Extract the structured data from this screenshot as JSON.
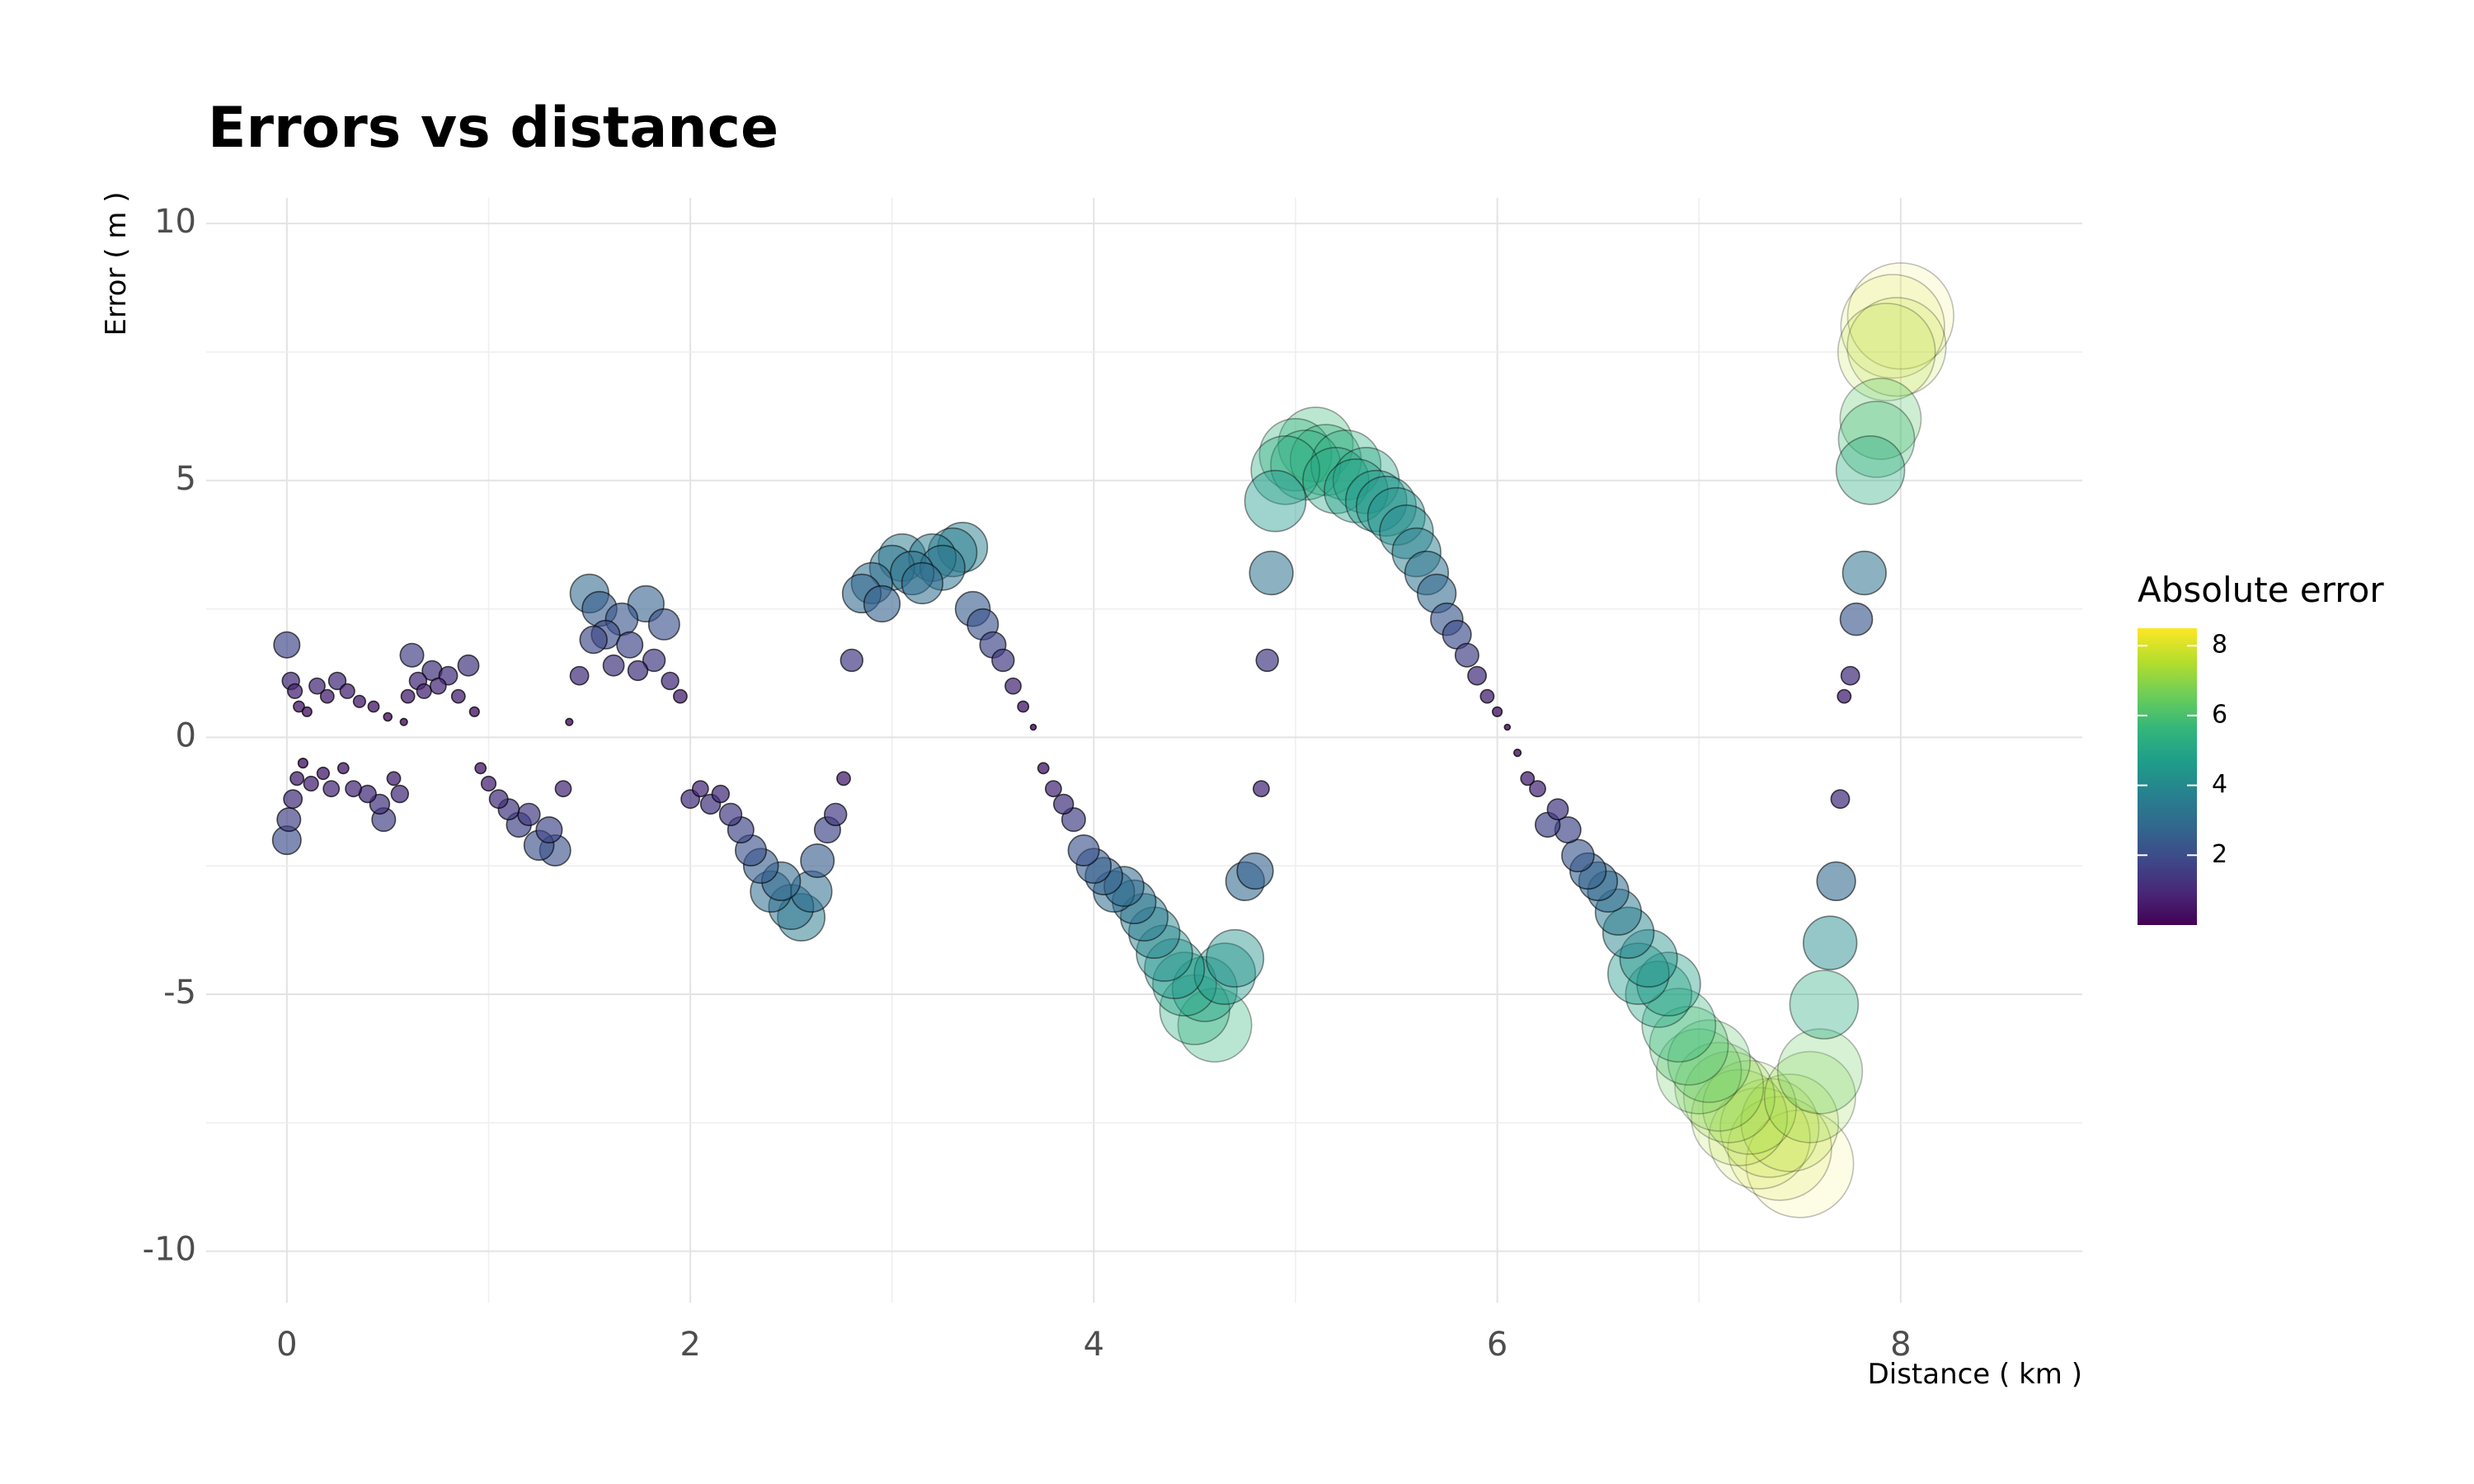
{
  "chart_data": {
    "type": "scatter",
    "title": "Errors vs distance",
    "xlabel": "Distance ( km )",
    "ylabel": "Error ( m )",
    "xlim": [
      -0.4,
      8.9
    ],
    "ylim": [
      -11,
      10.5
    ],
    "x_ticks": [
      0,
      2,
      4,
      6,
      8
    ],
    "y_ticks": [
      10,
      5,
      0,
      -5,
      -10
    ],
    "x_tick_labels": [
      "0",
      "2",
      "4",
      "6",
      "8"
    ],
    "y_tick_labels": [
      "10",
      "5",
      "0",
      "-5",
      "-10"
    ],
    "grid": true,
    "size_encoding": "Absolute error",
    "color_encoding": "Absolute error",
    "legend": {
      "title": "Absolute error",
      "placement": "right",
      "range": [
        0,
        8.5
      ],
      "ticks": [
        8,
        6,
        4,
        2
      ],
      "tick_labels": [
        "8",
        "6",
        "4",
        "2"
      ],
      "colormap": [
        "#440154",
        "#482878",
        "#3e4989",
        "#31688e",
        "#26828e",
        "#1f9e89",
        "#35b779",
        "#6ece58",
        "#b5de2b",
        "#fde725"
      ]
    },
    "points": [
      [
        0.0,
        1.8
      ],
      [
        0.0,
        -2.0
      ],
      [
        0.01,
        -1.6
      ],
      [
        0.02,
        1.1
      ],
      [
        0.03,
        -1.2
      ],
      [
        0.04,
        0.9
      ],
      [
        0.05,
        -0.8
      ],
      [
        0.06,
        0.6
      ],
      [
        0.08,
        -0.5
      ],
      [
        0.1,
        0.5
      ],
      [
        0.12,
        -0.9
      ],
      [
        0.15,
        1.0
      ],
      [
        0.18,
        -0.7
      ],
      [
        0.2,
        0.8
      ],
      [
        0.22,
        -1.0
      ],
      [
        0.25,
        1.1
      ],
      [
        0.28,
        -0.6
      ],
      [
        0.3,
        0.9
      ],
      [
        0.33,
        -1.0
      ],
      [
        0.36,
        0.7
      ],
      [
        0.4,
        -1.1
      ],
      [
        0.43,
        0.6
      ],
      [
        0.46,
        -1.3
      ],
      [
        0.48,
        -1.6
      ],
      [
        0.5,
        0.4
      ],
      [
        0.53,
        -0.8
      ],
      [
        0.56,
        -1.1
      ],
      [
        0.58,
        0.3
      ],
      [
        0.6,
        0.8
      ],
      [
        0.62,
        1.6
      ],
      [
        0.65,
        1.1
      ],
      [
        0.68,
        0.9
      ],
      [
        0.72,
        1.3
      ],
      [
        0.75,
        1.0
      ],
      [
        0.8,
        1.2
      ],
      [
        0.85,
        0.8
      ],
      [
        0.9,
        1.4
      ],
      [
        0.93,
        0.5
      ],
      [
        0.96,
        -0.6
      ],
      [
        1.0,
        -0.9
      ],
      [
        1.05,
        -1.2
      ],
      [
        1.1,
        -1.4
      ],
      [
        1.15,
        -1.7
      ],
      [
        1.2,
        -1.5
      ],
      [
        1.25,
        -2.1
      ],
      [
        1.3,
        -1.8
      ],
      [
        1.33,
        -2.2
      ],
      [
        1.37,
        -1.0
      ],
      [
        1.4,
        0.3
      ],
      [
        1.45,
        1.2
      ],
      [
        1.5,
        2.8
      ],
      [
        1.52,
        1.9
      ],
      [
        1.55,
        2.5
      ],
      [
        1.58,
        2.0
      ],
      [
        1.62,
        1.4
      ],
      [
        1.66,
        2.3
      ],
      [
        1.7,
        1.8
      ],
      [
        1.74,
        1.3
      ],
      [
        1.78,
        2.6
      ],
      [
        1.82,
        1.5
      ],
      [
        1.87,
        2.2
      ],
      [
        1.9,
        1.1
      ],
      [
        1.95,
        0.8
      ],
      [
        2.0,
        -1.2
      ],
      [
        2.05,
        -1.0
      ],
      [
        2.1,
        -1.3
      ],
      [
        2.15,
        -1.1
      ],
      [
        2.2,
        -1.5
      ],
      [
        2.25,
        -1.8
      ],
      [
        2.3,
        -2.2
      ],
      [
        2.35,
        -2.5
      ],
      [
        2.4,
        -3.0
      ],
      [
        2.45,
        -2.8
      ],
      [
        2.5,
        -3.3
      ],
      [
        2.55,
        -3.5
      ],
      [
        2.6,
        -3.0
      ],
      [
        2.63,
        -2.4
      ],
      [
        2.68,
        -1.8
      ],
      [
        2.72,
        -1.5
      ],
      [
        2.76,
        -0.8
      ],
      [
        2.8,
        1.5
      ],
      [
        2.85,
        2.8
      ],
      [
        2.9,
        3.0
      ],
      [
        2.95,
        2.6
      ],
      [
        3.0,
        3.3
      ],
      [
        3.05,
        3.5
      ],
      [
        3.1,
        3.2
      ],
      [
        3.15,
        3.0
      ],
      [
        3.2,
        3.5
      ],
      [
        3.25,
        3.3
      ],
      [
        3.3,
        3.6
      ],
      [
        3.35,
        3.7
      ],
      [
        3.4,
        2.5
      ],
      [
        3.45,
        2.2
      ],
      [
        3.5,
        1.8
      ],
      [
        3.55,
        1.5
      ],
      [
        3.6,
        1.0
      ],
      [
        3.65,
        0.6
      ],
      [
        3.7,
        0.2
      ],
      [
        3.75,
        -0.6
      ],
      [
        3.8,
        -1.0
      ],
      [
        3.85,
        -1.3
      ],
      [
        3.9,
        -1.6
      ],
      [
        3.95,
        -2.2
      ],
      [
        4.0,
        -2.5
      ],
      [
        4.05,
        -2.7
      ],
      [
        4.1,
        -3.0
      ],
      [
        4.15,
        -2.9
      ],
      [
        4.2,
        -3.2
      ],
      [
        4.25,
        -3.5
      ],
      [
        4.3,
        -3.8
      ],
      [
        4.35,
        -4.2
      ],
      [
        4.4,
        -4.5
      ],
      [
        4.45,
        -4.8
      ],
      [
        4.5,
        -5.3
      ],
      [
        4.55,
        -4.9
      ],
      [
        4.6,
        -5.6
      ],
      [
        4.65,
        -4.6
      ],
      [
        4.7,
        -4.3
      ],
      [
        4.75,
        -2.8
      ],
      [
        4.8,
        -2.6
      ],
      [
        4.83,
        -1.0
      ],
      [
        4.86,
        1.5
      ],
      [
        4.88,
        3.2
      ],
      [
        4.9,
        4.6
      ],
      [
        4.95,
        5.2
      ],
      [
        5.0,
        5.5
      ],
      [
        5.05,
        5.3
      ],
      [
        5.1,
        5.7
      ],
      [
        5.15,
        5.4
      ],
      [
        5.2,
        5.0
      ],
      [
        5.25,
        5.3
      ],
      [
        5.3,
        4.8
      ],
      [
        5.35,
        5.0
      ],
      [
        5.4,
        4.6
      ],
      [
        5.45,
        4.5
      ],
      [
        5.5,
        4.3
      ],
      [
        5.55,
        4.0
      ],
      [
        5.6,
        3.6
      ],
      [
        5.65,
        3.2
      ],
      [
        5.7,
        2.8
      ],
      [
        5.75,
        2.3
      ],
      [
        5.8,
        2.0
      ],
      [
        5.85,
        1.6
      ],
      [
        5.9,
        1.2
      ],
      [
        5.95,
        0.8
      ],
      [
        6.0,
        0.5
      ],
      [
        6.05,
        0.2
      ],
      [
        6.1,
        -0.3
      ],
      [
        6.15,
        -0.8
      ],
      [
        6.2,
        -1.0
      ],
      [
        6.25,
        -1.7
      ],
      [
        6.3,
        -1.4
      ],
      [
        6.35,
        -1.8
      ],
      [
        6.4,
        -2.3
      ],
      [
        6.45,
        -2.6
      ],
      [
        6.5,
        -2.8
      ],
      [
        6.55,
        -3.0
      ],
      [
        6.6,
        -3.4
      ],
      [
        6.65,
        -3.8
      ],
      [
        6.7,
        -4.6
      ],
      [
        6.75,
        -4.3
      ],
      [
        6.8,
        -5.0
      ],
      [
        6.85,
        -4.8
      ],
      [
        6.9,
        -5.6
      ],
      [
        6.95,
        -6.0
      ],
      [
        7.0,
        -6.5
      ],
      [
        7.05,
        -6.3
      ],
      [
        7.1,
        -6.8
      ],
      [
        7.15,
        -7.0
      ],
      [
        7.2,
        -7.4
      ],
      [
        7.25,
        -7.2
      ],
      [
        7.3,
        -7.8
      ],
      [
        7.35,
        -7.6
      ],
      [
        7.4,
        -8.0
      ],
      [
        7.45,
        -7.5
      ],
      [
        7.5,
        -8.3
      ],
      [
        7.55,
        -7.0
      ],
      [
        7.6,
        -6.5
      ],
      [
        7.62,
        -5.2
      ],
      [
        7.65,
        -4.0
      ],
      [
        7.68,
        -2.8
      ],
      [
        7.7,
        -1.2
      ],
      [
        7.72,
        0.8
      ],
      [
        7.75,
        1.2
      ],
      [
        7.78,
        2.3
      ],
      [
        7.82,
        3.2
      ],
      [
        7.85,
        5.2
      ],
      [
        7.88,
        5.8
      ],
      [
        7.9,
        6.2
      ],
      [
        7.93,
        7.5
      ],
      [
        7.96,
        8.0
      ],
      [
        7.98,
        7.6
      ],
      [
        8.0,
        8.2
      ]
    ]
  }
}
